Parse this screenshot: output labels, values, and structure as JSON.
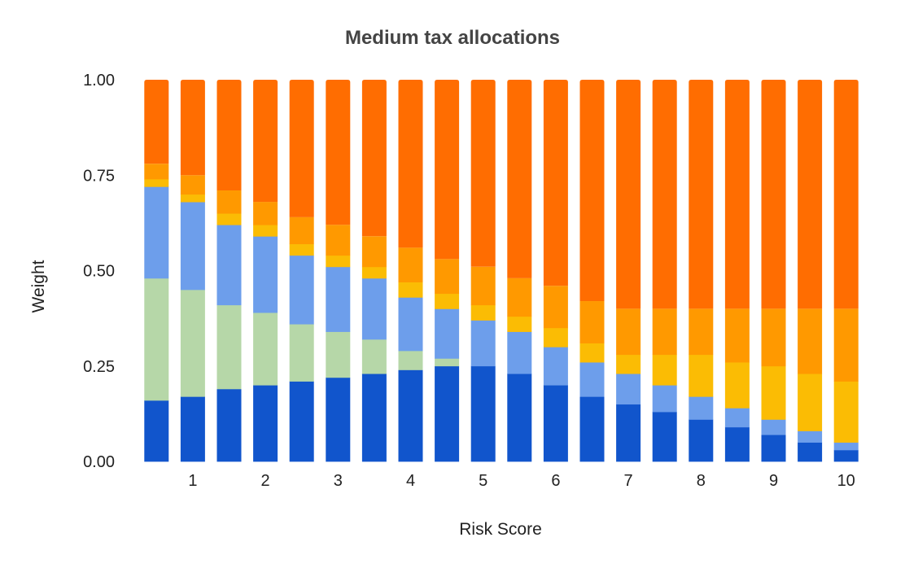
{
  "chart_data": {
    "type": "bar",
    "stacked": true,
    "title": "Medium tax allocations",
    "xlabel": "Risk Score",
    "ylabel": "Weight",
    "ylim": [
      0,
      1
    ],
    "yticks": [
      "0.00",
      "0.25",
      "0.50",
      "0.75",
      "1.00"
    ],
    "ytick_values": [
      0,
      0.25,
      0.5,
      0.75,
      1.0
    ],
    "x": [
      0.5,
      1,
      1.5,
      2,
      2.5,
      3,
      3.5,
      4,
      4.5,
      5,
      5.5,
      6,
      6.5,
      7,
      7.5,
      8,
      8.5,
      9,
      9.5,
      10
    ],
    "xtick_labels": [
      "1",
      "2",
      "3",
      "4",
      "5",
      "6",
      "7",
      "8",
      "9",
      "10"
    ],
    "xtick_values": [
      1,
      2,
      3,
      4,
      5,
      6,
      7,
      8,
      9,
      10
    ],
    "grid": false,
    "legend": "none",
    "series": [
      {
        "color": "#1155cc",
        "values": [
          0.16,
          0.17,
          0.19,
          0.2,
          0.21,
          0.22,
          0.23,
          0.24,
          0.25,
          0.25,
          0.23,
          0.2,
          0.17,
          0.15,
          0.13,
          0.11,
          0.09,
          0.07,
          0.05,
          0.03
        ]
      },
      {
        "color": "#b6d7a8",
        "values": [
          0.32,
          0.28,
          0.22,
          0.19,
          0.15,
          0.12,
          0.09,
          0.05,
          0.02,
          0.0,
          0.0,
          0.0,
          0.0,
          0.0,
          0.0,
          0.0,
          0.0,
          0.0,
          0.0,
          0.0
        ]
      },
      {
        "color": "#6d9eeb",
        "values": [
          0.24,
          0.23,
          0.21,
          0.2,
          0.18,
          0.17,
          0.16,
          0.14,
          0.13,
          0.12,
          0.11,
          0.1,
          0.09,
          0.08,
          0.07,
          0.06,
          0.05,
          0.04,
          0.03,
          0.02
        ]
      },
      {
        "color": "#fbbc04",
        "values": [
          0.02,
          0.02,
          0.03,
          0.03,
          0.03,
          0.03,
          0.03,
          0.04,
          0.04,
          0.04,
          0.04,
          0.05,
          0.05,
          0.05,
          0.08,
          0.11,
          0.12,
          0.14,
          0.15,
          0.16
        ]
      },
      {
        "color": "#ff9900",
        "values": [
          0.04,
          0.05,
          0.06,
          0.06,
          0.07,
          0.08,
          0.08,
          0.09,
          0.09,
          0.1,
          0.1,
          0.11,
          0.11,
          0.12,
          0.12,
          0.12,
          0.14,
          0.15,
          0.17,
          0.19
        ]
      },
      {
        "color": "#ff6d01",
        "values": [
          0.22,
          0.25,
          0.29,
          0.32,
          0.36,
          0.38,
          0.41,
          0.44,
          0.47,
          0.49,
          0.52,
          0.54,
          0.58,
          0.6,
          0.6,
          0.6,
          0.6,
          0.6,
          0.6,
          0.6
        ]
      }
    ]
  }
}
